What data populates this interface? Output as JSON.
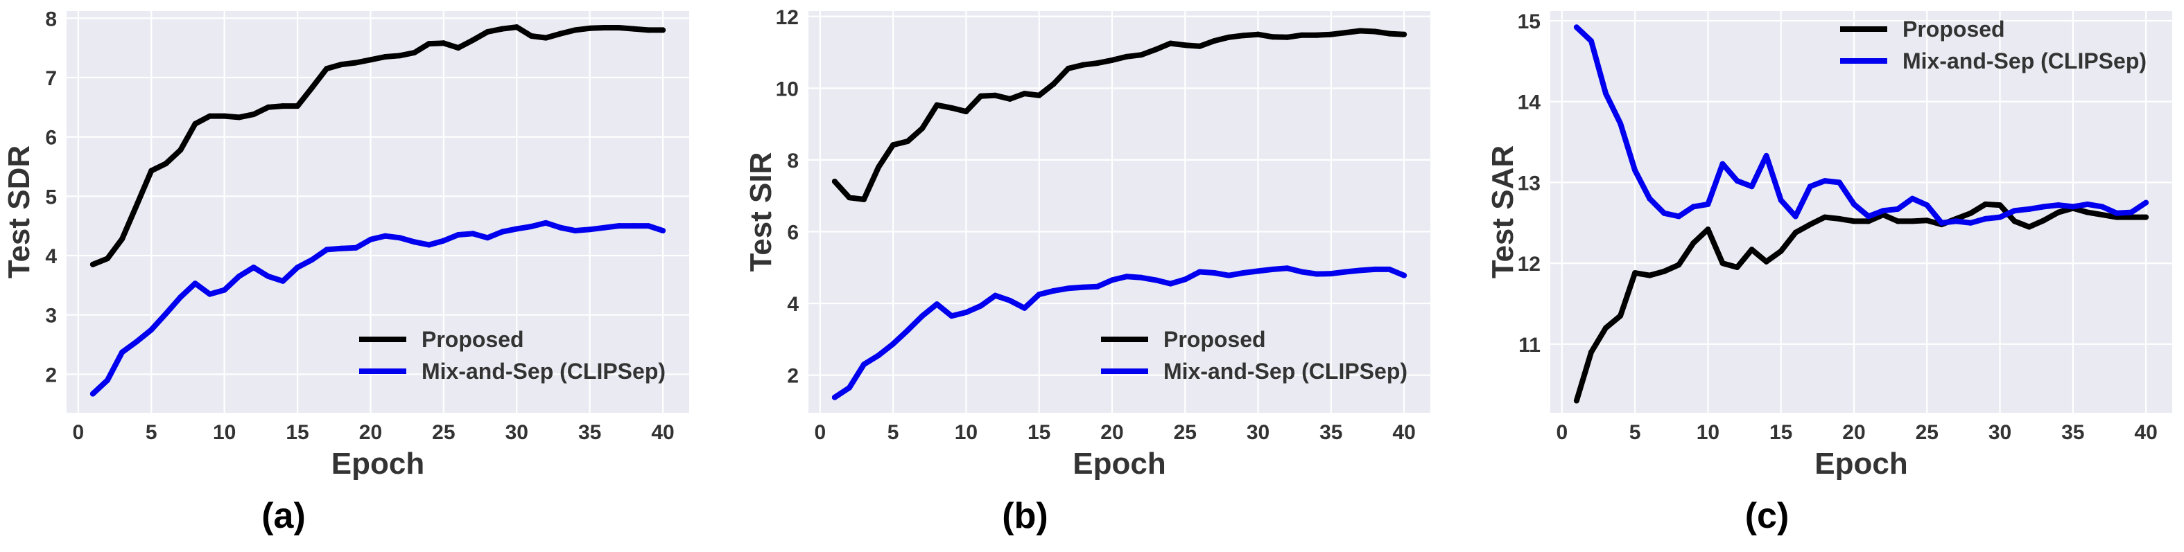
{
  "chart_data": [
    {
      "type": "line",
      "panel_label": "(a)",
      "xlabel": "Epoch",
      "ylabel": "Test SDR",
      "xlim": [
        -0.8,
        41.8
      ],
      "ylim": [
        1.35,
        8.12
      ],
      "xticks": [
        0,
        5,
        10,
        15,
        20,
        25,
        30,
        35,
        40
      ],
      "yticks": [
        2,
        3,
        4,
        5,
        6,
        7,
        8
      ],
      "grid": true,
      "legend_position": "lower-right",
      "x": [
        1,
        2,
        3,
        4,
        5,
        6,
        7,
        8,
        9,
        10,
        11,
        12,
        13,
        14,
        15,
        16,
        17,
        18,
        19,
        20,
        21,
        22,
        23,
        24,
        25,
        26,
        27,
        28,
        29,
        30,
        31,
        32,
        33,
        34,
        35,
        36,
        37,
        38,
        39,
        40
      ],
      "series": [
        {
          "name": "Proposed",
          "color": "#000000",
          "values": [
            3.85,
            3.95,
            4.28,
            4.85,
            5.43,
            5.55,
            5.78,
            6.22,
            6.35,
            6.35,
            6.33,
            6.38,
            6.5,
            6.52,
            6.52,
            6.83,
            7.15,
            7.22,
            7.25,
            7.3,
            7.35,
            7.37,
            7.42,
            7.57,
            7.58,
            7.5,
            7.63,
            7.77,
            7.82,
            7.85,
            7.7,
            7.67,
            7.74,
            7.8,
            7.83,
            7.84,
            7.84,
            7.82,
            7.8,
            7.8
          ]
        },
        {
          "name": "Mix-and-Sep (CLIPSep)",
          "color": "#0000ee",
          "values": [
            1.67,
            1.9,
            2.37,
            2.55,
            2.75,
            3.02,
            3.3,
            3.53,
            3.35,
            3.42,
            3.65,
            3.8,
            3.65,
            3.57,
            3.8,
            3.93,
            4.1,
            4.12,
            4.13,
            4.27,
            4.33,
            4.3,
            4.23,
            4.18,
            4.25,
            4.35,
            4.37,
            4.3,
            4.4,
            4.45,
            4.49,
            4.55,
            4.47,
            4.42,
            4.44,
            4.47,
            4.5,
            4.5,
            4.5,
            4.42
          ]
        }
      ]
    },
    {
      "type": "line",
      "panel_label": "(b)",
      "xlabel": "Epoch",
      "ylabel": "Test SIR",
      "xlim": [
        -0.8,
        41.8
      ],
      "ylim": [
        0.95,
        12.15
      ],
      "xticks": [
        0,
        5,
        10,
        15,
        20,
        25,
        30,
        35,
        40
      ],
      "yticks": [
        2,
        4,
        6,
        8,
        10,
        12
      ],
      "grid": true,
      "legend_position": "lower-right",
      "x": [
        1,
        2,
        3,
        4,
        5,
        6,
        7,
        8,
        9,
        10,
        11,
        12,
        13,
        14,
        15,
        16,
        17,
        18,
        19,
        20,
        21,
        22,
        23,
        24,
        25,
        26,
        27,
        28,
        29,
        30,
        31,
        32,
        33,
        34,
        35,
        36,
        37,
        38,
        39,
        40
      ],
      "series": [
        {
          "name": "Proposed",
          "color": "#000000",
          "values": [
            7.4,
            6.95,
            6.9,
            7.8,
            8.42,
            8.52,
            8.88,
            9.53,
            9.45,
            9.35,
            9.78,
            9.8,
            9.7,
            9.85,
            9.8,
            10.12,
            10.55,
            10.65,
            10.7,
            10.78,
            10.88,
            10.93,
            11.08,
            11.25,
            11.2,
            11.17,
            11.32,
            11.42,
            11.47,
            11.5,
            11.43,
            11.42,
            11.48,
            11.48,
            11.5,
            11.55,
            11.6,
            11.58,
            11.52,
            11.5
          ]
        },
        {
          "name": "Mix-and-Sep (CLIPSep)",
          "color": "#0000ee",
          "values": [
            1.38,
            1.65,
            2.3,
            2.55,
            2.87,
            3.25,
            3.65,
            3.98,
            3.65,
            3.75,
            3.93,
            4.22,
            4.08,
            3.87,
            4.25,
            4.35,
            4.42,
            4.45,
            4.47,
            4.65,
            4.75,
            4.72,
            4.65,
            4.55,
            4.67,
            4.88,
            4.85,
            4.78,
            4.85,
            4.9,
            4.95,
            4.98,
            4.88,
            4.82,
            4.83,
            4.88,
            4.92,
            4.95,
            4.95,
            4.78
          ]
        }
      ]
    },
    {
      "type": "line",
      "panel_label": "(c)",
      "xlabel": "Epoch",
      "ylabel": "Test SAR",
      "xlim": [
        -0.8,
        41.8
      ],
      "ylim": [
        10.15,
        15.12
      ],
      "xticks": [
        0,
        5,
        10,
        15,
        20,
        25,
        30,
        35,
        40
      ],
      "yticks": [
        11,
        12,
        13,
        14,
        15
      ],
      "grid": true,
      "legend_position": "upper-right",
      "x": [
        1,
        2,
        3,
        4,
        5,
        6,
        7,
        8,
        9,
        10,
        11,
        12,
        13,
        14,
        15,
        16,
        17,
        18,
        19,
        20,
        21,
        22,
        23,
        24,
        25,
        26,
        27,
        28,
        29,
        30,
        31,
        32,
        33,
        34,
        35,
        36,
        37,
        38,
        39,
        40
      ],
      "series": [
        {
          "name": "Proposed",
          "color": "#000000",
          "values": [
            10.3,
            10.9,
            11.2,
            11.35,
            11.88,
            11.85,
            11.9,
            11.98,
            12.25,
            12.42,
            12.0,
            11.95,
            12.17,
            12.02,
            12.15,
            12.38,
            12.48,
            12.57,
            12.55,
            12.52,
            12.52,
            12.6,
            12.52,
            12.52,
            12.53,
            12.48,
            12.55,
            12.62,
            12.73,
            12.72,
            12.52,
            12.45,
            12.53,
            12.63,
            12.68,
            12.63,
            12.6,
            12.57,
            12.57,
            12.57
          ]
        },
        {
          "name": "Mix-and-Sep (CLIPSep)",
          "color": "#0000ee",
          "values": [
            14.92,
            14.75,
            14.1,
            13.73,
            13.15,
            12.8,
            12.62,
            12.58,
            12.7,
            12.73,
            13.23,
            13.02,
            12.95,
            13.33,
            12.78,
            12.58,
            12.95,
            13.02,
            13.0,
            12.73,
            12.58,
            12.65,
            12.67,
            12.8,
            12.72,
            12.5,
            12.52,
            12.5,
            12.55,
            12.57,
            12.65,
            12.67,
            12.7,
            12.72,
            12.7,
            12.73,
            12.7,
            12.62,
            12.63,
            12.75
          ]
        }
      ]
    }
  ]
}
